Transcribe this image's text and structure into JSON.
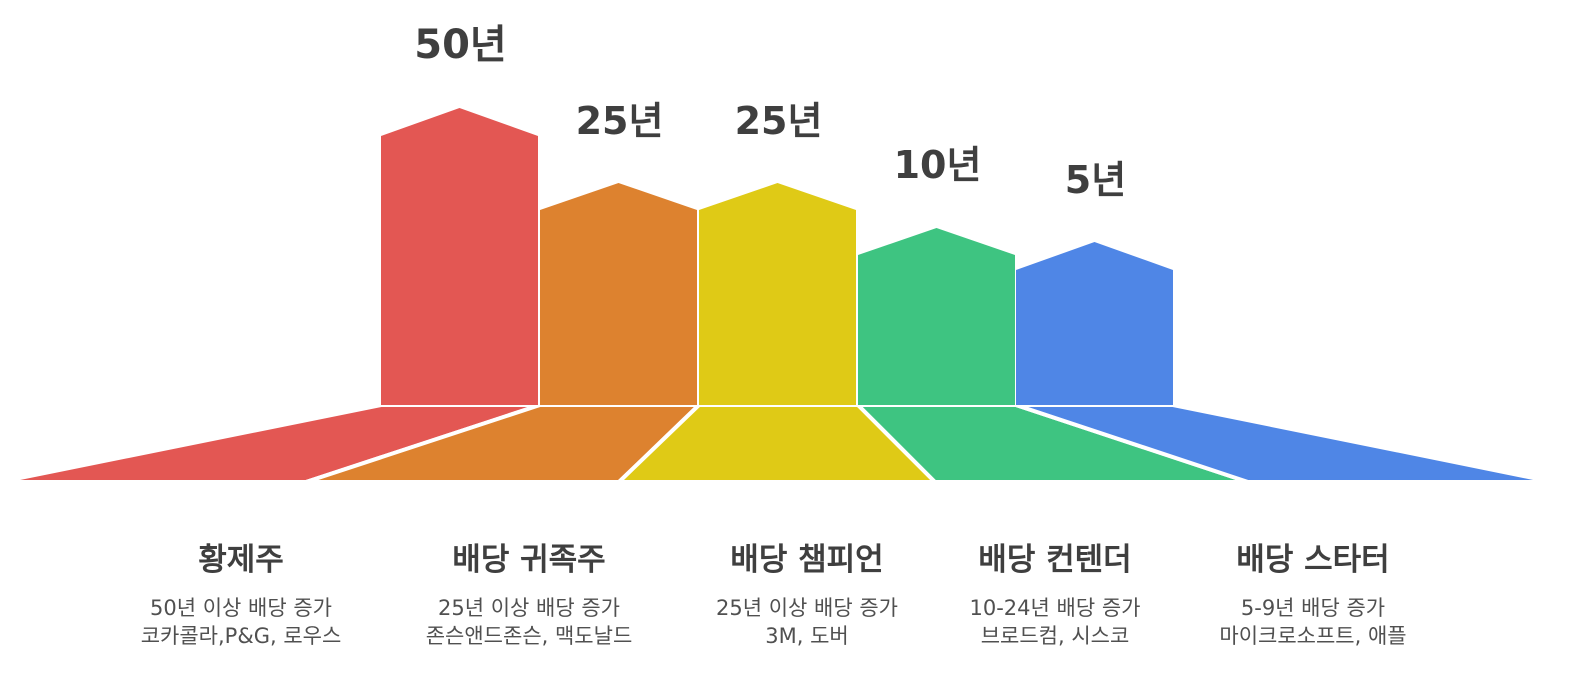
{
  "tiers": [
    {
      "years": "50년",
      "name": "황제주",
      "desc": "50년 이상 배당 증가",
      "examples": "코카콜라,P&G, 로우스",
      "color": "#E35753"
    },
    {
      "years": "25년",
      "name": "배당 귀족주",
      "desc": "25년 이상 배당 증가",
      "examples": "존슨앤드존슨, 맥도날드",
      "color": "#DD822F"
    },
    {
      "years": "25년",
      "name": "배당 챔피언",
      "desc": "25년 이상 배당 증가",
      "examples": "3M, 도버",
      "color": "#DFCA16"
    },
    {
      "years": "10년",
      "name": "배당 컨텐더",
      "desc": "10-24년 배당 증가",
      "examples": "브로드컴, 시스코",
      "color": "#3EC481"
    },
    {
      "years": "5년",
      "name": "배당 스타터",
      "desc": "5-9년 배당 증가",
      "examples": "마이크로소프트, 애플",
      "color": "#4F86E6"
    }
  ]
}
